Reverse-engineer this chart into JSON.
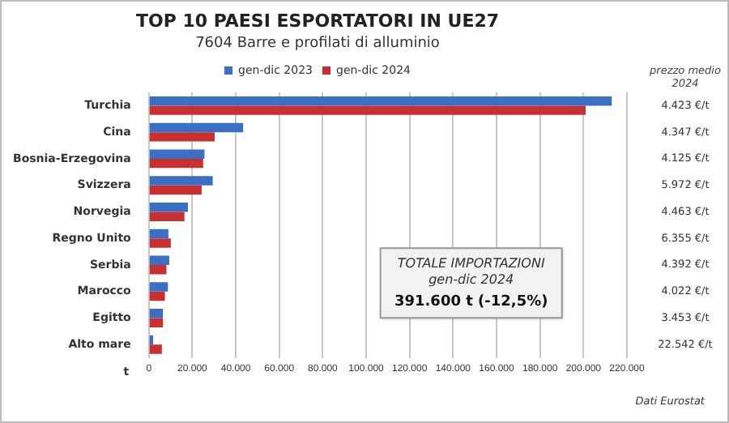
{
  "chart_data": {
    "type": "bar",
    "orientation": "horizontal",
    "title": "TOP 10 PAESI ESPORTATORI IN UE27",
    "subtitle": "7604 Barre e profilati di alluminio",
    "xlabel": "t",
    "categories": [
      "Turchia",
      "Cina",
      "Bosnia-Erzegovina",
      "Svizzera",
      "Norvegia",
      "Regno Unito",
      "Serbia",
      "Marocco",
      "Egitto",
      "Alto mare"
    ],
    "series": [
      {
        "name": "gen-dic 2023",
        "color": "#3b6fc4",
        "values": [
          213000,
          43400,
          25600,
          29400,
          18000,
          9000,
          9400,
          8800,
          6500,
          2000
        ]
      },
      {
        "name": "gen-dic 2024",
        "color": "#c8302f",
        "values": [
          201000,
          30300,
          25000,
          24300,
          16400,
          10100,
          8100,
          7400,
          6500,
          6000
        ]
      }
    ],
    "xlim": [
      0,
      220000
    ],
    "xticks": [
      {
        "value": 0,
        "label": "0"
      },
      {
        "value": 20000,
        "label": "20.000"
      },
      {
        "value": 40000,
        "label": "40.000"
      },
      {
        "value": 60000,
        "label": "60.000"
      },
      {
        "value": 80000,
        "label": "80.000"
      },
      {
        "value": 100000,
        "label": "100.000"
      },
      {
        "value": 120000,
        "label": "120.000"
      },
      {
        "value": 140000,
        "label": "140.000"
      },
      {
        "value": 160000,
        "label": "160.000"
      },
      {
        "value": 180000,
        "label": "180.000"
      },
      {
        "value": 200000,
        "label": "200.000"
      },
      {
        "value": 220000,
        "label": "220.000"
      }
    ],
    "grid": "x",
    "legend": "top",
    "annotations": [
      "prezzo medio 2024",
      "4.423 €/t",
      "4.347 €/t",
      "4.125 €/t",
      "5.972 €/t",
      "4.463 €/t",
      "6.355 €/t",
      "4.392 €/t",
      "4.022 €/t",
      "3.453 €/t",
      "22.542 €/t",
      "TOTALE IMPORTAZIONI",
      "gen-dic 2024",
      "391.600 t (-12,5%)",
      "Dati Eurostat"
    ]
  }
}
